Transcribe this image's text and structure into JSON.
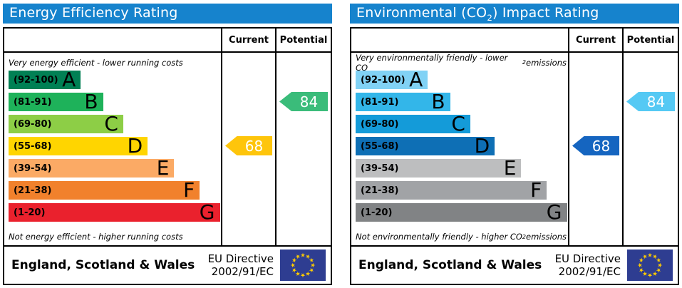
{
  "colors": {
    "header_bg": "#1683cd",
    "flag_bg": "#2e3d91",
    "flag_star": "#ffcc00"
  },
  "panels": [
    {
      "title_parts": {
        "pre": "Energy Efficiency Rating",
        "sub": "",
        "post": ""
      },
      "columns": {
        "current": "Current",
        "potential": "Potential"
      },
      "top_note_parts": {
        "pre": "Very energy efficient - lower running costs",
        "sub": "",
        "post": ""
      },
      "bottom_note_parts": {
        "pre": "Not energy efficient - higher running costs",
        "sub": "",
        "post": ""
      },
      "bands": [
        {
          "range": "(92-100)",
          "letter": "A",
          "color": "#008054",
          "width_pct": 34
        },
        {
          "range": "(81-91)",
          "letter": "B",
          "color": "#1eb25a",
          "width_pct": 44.5
        },
        {
          "range": "(69-80)",
          "letter": "C",
          "color": "#8dce46",
          "width_pct": 54
        },
        {
          "range": "(55-68)",
          "letter": "D",
          "color": "#ffd500",
          "width_pct": 65.5
        },
        {
          "range": "(39-54)",
          "letter": "E",
          "color": "#fbaa65",
          "width_pct": 78
        },
        {
          "range": "(21-38)",
          "letter": "F",
          "color": "#f1812c",
          "width_pct": 90
        },
        {
          "range": "(1-20)",
          "letter": "G",
          "color": "#ea212d",
          "width_pct": 99.5
        }
      ],
      "current": {
        "value": "68",
        "band_index": 3,
        "color": "#fec50b"
      },
      "potential": {
        "value": "84",
        "band_index": 1,
        "color": "#3abc7a"
      },
      "footer": {
        "region": "England, Scotland & Wales",
        "directive_line1": "EU Directive",
        "directive_line2": "2002/91/EC"
      }
    },
    {
      "title_parts": {
        "pre": "Environmental (CO",
        "sub": "2",
        "post": ") Impact Rating"
      },
      "columns": {
        "current": "Current",
        "potential": "Potential"
      },
      "top_note_parts": {
        "pre": "Very environmentally friendly - lower CO",
        "sub": "2",
        "post": " emissions"
      },
      "bottom_note_parts": {
        "pre": "Not environmentally friendly - higher CO",
        "sub": "2",
        "post": " emissions"
      },
      "bands": [
        {
          "range": "(92-100)",
          "letter": "A",
          "color": "#81d2f5",
          "width_pct": 34
        },
        {
          "range": "(81-91)",
          "letter": "B",
          "color": "#33b6e9",
          "width_pct": 44.5
        },
        {
          "range": "(69-80)",
          "letter": "C",
          "color": "#149bd9",
          "width_pct": 54
        },
        {
          "range": "(55-68)",
          "letter": "D",
          "color": "#0e6fb5",
          "width_pct": 65.5
        },
        {
          "range": "(39-54)",
          "letter": "E",
          "color": "#bdbebf",
          "width_pct": 78
        },
        {
          "range": "(21-38)",
          "letter": "F",
          "color": "#a1a3a6",
          "width_pct": 90
        },
        {
          "range": "(1-20)",
          "letter": "G",
          "color": "#818385",
          "width_pct": 99.5
        }
      ],
      "current": {
        "value": "68",
        "band_index": 3,
        "color": "#1565c0"
      },
      "potential": {
        "value": "84",
        "band_index": 1,
        "color": "#55c9f4"
      },
      "footer": {
        "region": "England, Scotland & Wales",
        "directive_line1": "EU Directive",
        "directive_line2": "2002/91/EC"
      }
    }
  ],
  "chart_data": [
    {
      "type": "bar",
      "title": "Energy Efficiency Rating",
      "categories": [
        "A (92-100)",
        "B (81-91)",
        "C (69-80)",
        "D (55-68)",
        "E (39-54)",
        "F (21-38)",
        "G (1-20)"
      ],
      "series": [
        {
          "name": "Current",
          "values": [
            68
          ],
          "band": "D"
        },
        {
          "name": "Potential",
          "values": [
            84
          ],
          "band": "B"
        }
      ],
      "annotations": [
        "Very energy efficient - lower running costs",
        "Not energy efficient - higher running costs"
      ],
      "region": "England, Scotland & Wales",
      "directive": "EU Directive 2002/91/EC",
      "xlim": [
        1,
        100
      ]
    },
    {
      "type": "bar",
      "title": "Environmental (CO2) Impact Rating",
      "categories": [
        "A (92-100)",
        "B (81-91)",
        "C (69-80)",
        "D (55-68)",
        "E (39-54)",
        "F (21-38)",
        "G (1-20)"
      ],
      "series": [
        {
          "name": "Current",
          "values": [
            68
          ],
          "band": "D"
        },
        {
          "name": "Potential",
          "values": [
            84
          ],
          "band": "B"
        }
      ],
      "annotations": [
        "Very environmentally friendly - lower CO2 emissions",
        "Not environmentally friendly - higher CO2 emissions"
      ],
      "region": "England, Scotland & Wales",
      "directive": "EU Directive 2002/91/EC",
      "xlim": [
        1,
        100
      ]
    }
  ]
}
